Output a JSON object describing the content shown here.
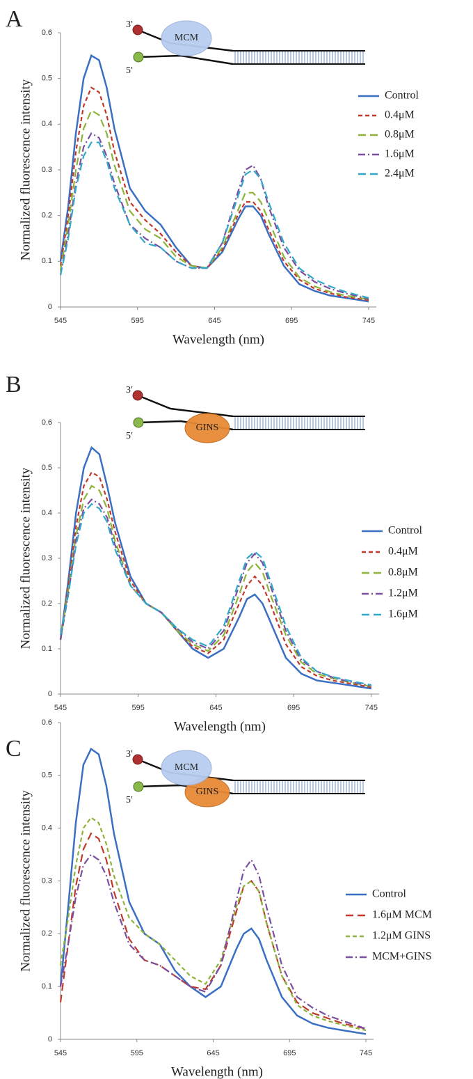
{
  "chart_data": [
    {
      "type": "line",
      "panel": "A",
      "proteins": [
        "MCM"
      ],
      "strand_labels": [
        "3′",
        "5′"
      ],
      "xlabel": "Wavelength (nm)",
      "ylabel": "Normalized fluorescence  intensity",
      "xlim": [
        545,
        750
      ],
      "ylim": [
        0,
        0.6
      ],
      "xticks": [
        545,
        595,
        645,
        695,
        745
      ],
      "yticks": [
        0,
        0.1,
        0.2,
        0.3,
        0.4,
        0.5,
        0.6
      ],
      "legend": "right",
      "x": [
        545,
        550,
        555,
        560,
        565,
        570,
        575,
        580,
        590,
        600,
        610,
        620,
        630,
        640,
        650,
        660,
        665,
        670,
        675,
        680,
        690,
        700,
        710,
        720,
        730,
        745
      ],
      "series": [
        {
          "name": "Control",
          "color": "#3a6fc4",
          "dash": "solid",
          "values": [
            0.1,
            0.22,
            0.38,
            0.5,
            0.55,
            0.54,
            0.48,
            0.39,
            0.26,
            0.21,
            0.18,
            0.13,
            0.09,
            0.085,
            0.12,
            0.19,
            0.22,
            0.22,
            0.2,
            0.16,
            0.09,
            0.05,
            0.035,
            0.025,
            0.02,
            0.012
          ]
        },
        {
          "name": "0.4μM",
          "color": "#c0392b",
          "dash": "dashed",
          "values": [
            0.09,
            0.2,
            0.34,
            0.44,
            0.48,
            0.47,
            0.42,
            0.34,
            0.23,
            0.19,
            0.16,
            0.12,
            0.09,
            0.085,
            0.125,
            0.2,
            0.23,
            0.23,
            0.21,
            0.17,
            0.1,
            0.06,
            0.04,
            0.03,
            0.022,
            0.015
          ]
        },
        {
          "name": "0.8μM",
          "color": "#8db33a",
          "dash": "longdash",
          "values": [
            0.08,
            0.18,
            0.3,
            0.39,
            0.43,
            0.42,
            0.38,
            0.31,
            0.21,
            0.17,
            0.15,
            0.11,
            0.09,
            0.085,
            0.13,
            0.21,
            0.25,
            0.25,
            0.23,
            0.19,
            0.11,
            0.065,
            0.045,
            0.033,
            0.025,
            0.017
          ]
        },
        {
          "name": "1.6μM",
          "color": "#7a4fa0",
          "dash": "dashdot",
          "values": [
            0.07,
            0.16,
            0.27,
            0.35,
            0.38,
            0.37,
            0.33,
            0.27,
            0.18,
            0.15,
            0.13,
            0.1,
            0.085,
            0.085,
            0.14,
            0.25,
            0.3,
            0.31,
            0.28,
            0.22,
            0.13,
            0.08,
            0.055,
            0.04,
            0.03,
            0.018
          ]
        },
        {
          "name": "2.4μM",
          "color": "#31a8c7",
          "dash": "longdash",
          "values": [
            0.07,
            0.15,
            0.26,
            0.33,
            0.36,
            0.36,
            0.32,
            0.26,
            0.18,
            0.14,
            0.13,
            0.1,
            0.085,
            0.085,
            0.14,
            0.24,
            0.29,
            0.3,
            0.28,
            0.23,
            0.14,
            0.085,
            0.06,
            0.045,
            0.033,
            0.02
          ]
        }
      ]
    },
    {
      "type": "line",
      "panel": "B",
      "proteins": [
        "GINS"
      ],
      "strand_labels": [
        "3′",
        "5′"
      ],
      "xlabel": "Wavelength (nm)",
      "ylabel": "Normalized fluorescence  intensity",
      "xlim": [
        545,
        750
      ],
      "ylim": [
        0,
        0.6
      ],
      "xticks": [
        545,
        595,
        645,
        695,
        745
      ],
      "yticks": [
        0,
        0.1,
        0.2,
        0.3,
        0.4,
        0.5,
        0.6
      ],
      "legend": "right",
      "x": [
        545,
        550,
        555,
        560,
        565,
        570,
        575,
        580,
        590,
        600,
        610,
        620,
        630,
        640,
        650,
        660,
        665,
        670,
        675,
        680,
        690,
        700,
        710,
        720,
        730,
        745
      ],
      "series": [
        {
          "name": "Control",
          "color": "#3a6fc4",
          "dash": "solid",
          "values": [
            0.12,
            0.25,
            0.4,
            0.5,
            0.545,
            0.53,
            0.46,
            0.38,
            0.26,
            0.2,
            0.18,
            0.14,
            0.1,
            0.08,
            0.1,
            0.17,
            0.21,
            0.22,
            0.2,
            0.16,
            0.08,
            0.045,
            0.03,
            0.025,
            0.02,
            0.012
          ]
        },
        {
          "name": "0.4μM",
          "color": "#c0392b",
          "dash": "dashed",
          "values": [
            0.12,
            0.24,
            0.37,
            0.46,
            0.49,
            0.48,
            0.43,
            0.36,
            0.25,
            0.2,
            0.18,
            0.14,
            0.105,
            0.09,
            0.12,
            0.2,
            0.24,
            0.26,
            0.24,
            0.2,
            0.11,
            0.06,
            0.04,
            0.03,
            0.024,
            0.015
          ]
        },
        {
          "name": "0.8μM",
          "color": "#8db33a",
          "dash": "longdash",
          "values": [
            0.12,
            0.23,
            0.35,
            0.43,
            0.46,
            0.45,
            0.41,
            0.34,
            0.24,
            0.2,
            0.18,
            0.14,
            0.11,
            0.095,
            0.13,
            0.22,
            0.27,
            0.29,
            0.27,
            0.22,
            0.13,
            0.07,
            0.045,
            0.035,
            0.027,
            0.017
          ]
        },
        {
          "name": "1.2μM",
          "color": "#7a4fa0",
          "dash": "dashdot",
          "values": [
            0.12,
            0.22,
            0.34,
            0.41,
            0.43,
            0.42,
            0.39,
            0.33,
            0.24,
            0.2,
            0.18,
            0.145,
            0.115,
            0.1,
            0.14,
            0.24,
            0.29,
            0.31,
            0.29,
            0.24,
            0.14,
            0.075,
            0.05,
            0.037,
            0.028,
            0.018
          ]
        },
        {
          "name": "1.6μM",
          "color": "#31a8c7",
          "dash": "longdash",
          "values": [
            0.13,
            0.22,
            0.33,
            0.4,
            0.42,
            0.41,
            0.38,
            0.32,
            0.24,
            0.2,
            0.18,
            0.145,
            0.12,
            0.105,
            0.15,
            0.25,
            0.3,
            0.315,
            0.3,
            0.25,
            0.15,
            0.08,
            0.05,
            0.038,
            0.03,
            0.02
          ]
        }
      ]
    },
    {
      "type": "line",
      "panel": "C",
      "proteins": [
        "MCM",
        "GINS"
      ],
      "strand_labels": [
        "3′",
        "5′"
      ],
      "xlabel": "Wavelength (nm)",
      "ylabel": "Normalized fluorescence  intensity",
      "xlim": [
        545,
        750
      ],
      "ylim": [
        0,
        0.6
      ],
      "xticks": [
        545,
        595,
        645,
        695,
        745
      ],
      "yticks": [
        0,
        0.1,
        0.2,
        0.3,
        0.4,
        0.5,
        0.6
      ],
      "legend": "right",
      "x": [
        545,
        550,
        555,
        560,
        565,
        570,
        575,
        580,
        590,
        600,
        610,
        620,
        630,
        640,
        650,
        660,
        665,
        670,
        675,
        680,
        690,
        700,
        710,
        720,
        730,
        745
      ],
      "series": [
        {
          "name": "Control",
          "color": "#3a6fc4",
          "dash": "solid",
          "values": [
            0.1,
            0.25,
            0.41,
            0.52,
            0.55,
            0.54,
            0.48,
            0.39,
            0.26,
            0.2,
            0.18,
            0.13,
            0.1,
            0.08,
            0.1,
            0.17,
            0.2,
            0.21,
            0.19,
            0.15,
            0.08,
            0.045,
            0.03,
            0.022,
            0.017,
            0.01
          ]
        },
        {
          "name": "1.6μM MCM",
          "color": "#c0392b",
          "dash": "longdash",
          "values": [
            0.07,
            0.18,
            0.29,
            0.36,
            0.39,
            0.38,
            0.34,
            0.28,
            0.19,
            0.15,
            0.14,
            0.12,
            0.1,
            0.095,
            0.14,
            0.24,
            0.29,
            0.3,
            0.28,
            0.22,
            0.12,
            0.07,
            0.05,
            0.04,
            0.03,
            0.02
          ]
        },
        {
          "name": "1.2μM GINS",
          "color": "#8db33a",
          "dash": "dashed",
          "values": [
            0.14,
            0.23,
            0.33,
            0.4,
            0.42,
            0.41,
            0.37,
            0.31,
            0.23,
            0.2,
            0.18,
            0.15,
            0.12,
            0.105,
            0.15,
            0.25,
            0.29,
            0.3,
            0.28,
            0.22,
            0.12,
            0.065,
            0.045,
            0.035,
            0.027,
            0.017
          ]
        },
        {
          "name": "MCM+GINS",
          "color": "#7a4fa0",
          "dash": "dashdot",
          "values": [
            0.1,
            0.18,
            0.27,
            0.33,
            0.35,
            0.34,
            0.31,
            0.26,
            0.18,
            0.15,
            0.14,
            0.12,
            0.1,
            0.09,
            0.14,
            0.26,
            0.32,
            0.34,
            0.31,
            0.25,
            0.14,
            0.08,
            0.06,
            0.045,
            0.035,
            0.02
          ]
        }
      ]
    }
  ]
}
